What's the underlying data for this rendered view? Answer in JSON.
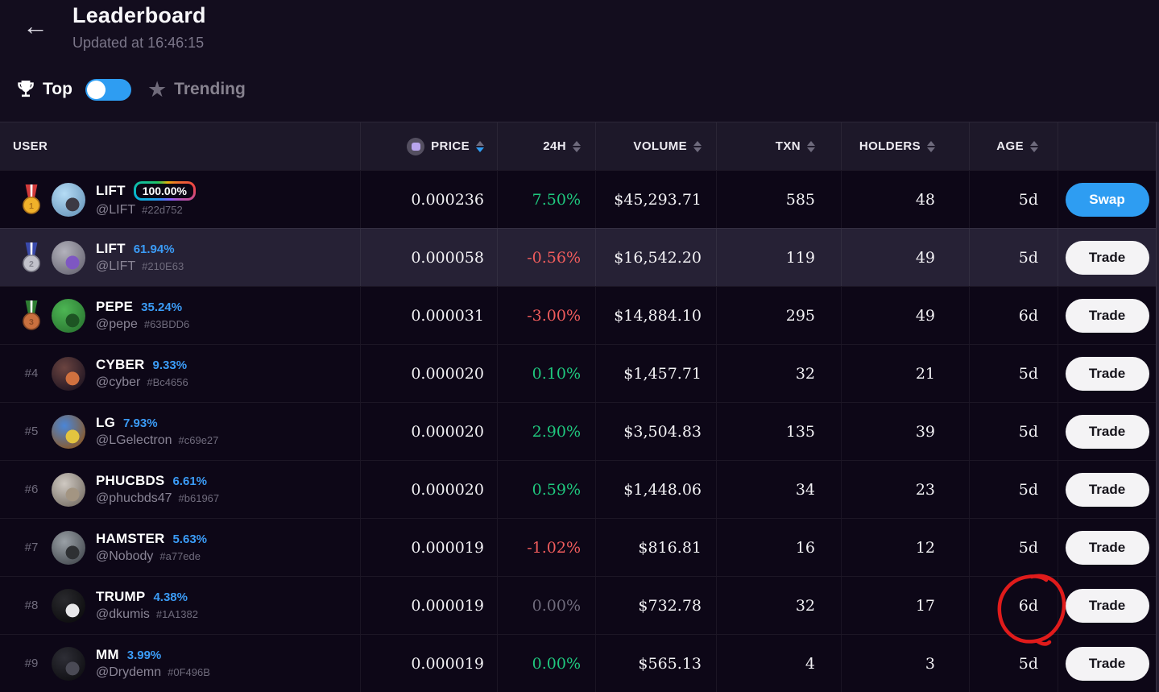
{
  "page": {
    "title": "Leaderboard",
    "updated": "Updated at 16:46:15"
  },
  "back_button": {
    "glyph": "←"
  },
  "filter_toggle": {
    "left": {
      "label": "Top",
      "icon": "trophy-icon",
      "active": true
    },
    "right": {
      "label": "Trending",
      "icon": "star-icon",
      "active": false
    },
    "star_glyph": "★",
    "switch_color": "#2e9df2",
    "knob_position": "left"
  },
  "table": {
    "columns": [
      {
        "key": "user",
        "label": "USER",
        "sortable": false,
        "align": "left"
      },
      {
        "key": "price",
        "label": "PRICE",
        "sortable": true,
        "align": "right",
        "icon": "coin-icon",
        "sort": "desc"
      },
      {
        "key": "h24",
        "label": "24H",
        "sortable": true,
        "align": "right"
      },
      {
        "key": "volume",
        "label": "VOLUME",
        "sortable": true,
        "align": "right"
      },
      {
        "key": "txn",
        "label": "TXN",
        "sortable": true,
        "align": "right"
      },
      {
        "key": "holders",
        "label": "HOLDERS",
        "sortable": true,
        "align": "right"
      },
      {
        "key": "age",
        "label": "AGE",
        "sortable": true,
        "align": "right"
      },
      {
        "key": "action",
        "label": "",
        "sortable": false,
        "align": "center"
      }
    ],
    "rows": [
      {
        "rank": "1",
        "rank_type": "medal-gold",
        "name": "LIFT",
        "pct": "100.00%",
        "badge": true,
        "handle": "@LIFT",
        "hash": "#22d752",
        "price": "0.000236",
        "h24": "7.50%",
        "h24_tone": "green",
        "volume": "$45,293.71",
        "txn": "585",
        "holders": "48",
        "age": "5d",
        "action": "Swap",
        "action_style": "primary",
        "highlight": false,
        "annotated": false,
        "avatar": {
          "base": "#b5dcf5",
          "shade": "#6f9cc0",
          "accent": "#3c3a44"
        }
      },
      {
        "rank": "2",
        "rank_type": "medal-silver",
        "name": "LIFT",
        "pct": "61.94%",
        "badge": false,
        "handle": "@LIFT",
        "hash": "#210E63",
        "price": "0.000058",
        "h24": "-0.56%",
        "h24_tone": "red",
        "volume": "$16,542.20",
        "txn": "119",
        "holders": "49",
        "age": "5d",
        "action": "Trade",
        "action_style": "light",
        "highlight": true,
        "annotated": false,
        "avatar": {
          "base": "#b3b2bc",
          "shade": "#6e6c79",
          "accent": "#7e57c2"
        }
      },
      {
        "rank": "3",
        "rank_type": "medal-bronze",
        "name": "PEPE",
        "pct": "35.24%",
        "badge": false,
        "handle": "@pepe",
        "hash": "#63BDD6",
        "price": "0.000031",
        "h24": "-3.00%",
        "h24_tone": "red",
        "volume": "$14,884.10",
        "txn": "295",
        "holders": "49",
        "age": "6d",
        "action": "Trade",
        "action_style": "light",
        "highlight": false,
        "annotated": false,
        "avatar": {
          "base": "#4db654",
          "shade": "#2c7a33",
          "accent": "#1d5423"
        }
      },
      {
        "rank": "#4",
        "rank_type": "number",
        "name": "CYBER",
        "pct": "9.33%",
        "badge": false,
        "handle": "@cyber",
        "hash": "#Bc4656",
        "price": "0.000020",
        "h24": "0.10%",
        "h24_tone": "green",
        "volume": "$1,457.71",
        "txn": "32",
        "holders": "21",
        "age": "5d",
        "action": "Trade",
        "action_style": "light",
        "highlight": false,
        "annotated": false,
        "avatar": {
          "base": "#6b4440",
          "shade": "#241824",
          "accent": "#d0713f"
        }
      },
      {
        "rank": "#5",
        "rank_type": "number",
        "name": "LG",
        "pct": "7.93%",
        "badge": false,
        "handle": "@LGelectron",
        "hash": "#c69e27",
        "price": "0.000020",
        "h24": "2.90%",
        "h24_tone": "green",
        "volume": "$3,504.83",
        "txn": "135",
        "holders": "39",
        "age": "5d",
        "action": "Trade",
        "action_style": "light",
        "highlight": false,
        "annotated": false,
        "avatar": {
          "base": "#4a86d8",
          "shade": "#8a5a2a",
          "accent": "#e3c43f"
        }
      },
      {
        "rank": "#6",
        "rank_type": "number",
        "name": "PHUCBDS",
        "pct": "6.61%",
        "badge": false,
        "handle": "@phucbds47",
        "hash": "#b61967",
        "price": "0.000020",
        "h24": "0.59%",
        "h24_tone": "green",
        "volume": "$1,448.06",
        "txn": "34",
        "holders": "23",
        "age": "5d",
        "action": "Trade",
        "action_style": "light",
        "highlight": false,
        "annotated": false,
        "avatar": {
          "base": "#cfc9c2",
          "shade": "#7d756c",
          "accent": "#a39582"
        }
      },
      {
        "rank": "#7",
        "rank_type": "number",
        "name": "HAMSTER",
        "pct": "5.63%",
        "badge": false,
        "handle": "@Nobody",
        "hash": "#a77ede",
        "price": "0.000019",
        "h24": "-1.02%",
        "h24_tone": "red",
        "volume": "$816.81",
        "txn": "16",
        "holders": "12",
        "age": "5d",
        "action": "Trade",
        "action_style": "light",
        "highlight": false,
        "annotated": false,
        "avatar": {
          "base": "#9aa0a6",
          "shade": "#4a4f55",
          "accent": "#2e3033"
        }
      },
      {
        "rank": "#8",
        "rank_type": "number",
        "name": "TRUMP",
        "pct": "4.38%",
        "badge": false,
        "handle": "@dkumis",
        "hash": "#1A1382",
        "price": "0.000019",
        "h24": "0.00%",
        "h24_tone": "gray",
        "volume": "$732.78",
        "txn": "32",
        "holders": "17",
        "age": "6d",
        "action": "Trade",
        "action_style": "light",
        "highlight": false,
        "annotated": true,
        "avatar": {
          "base": "#2a2a2e",
          "shade": "#0e0e10",
          "accent": "#e8e8ea"
        }
      },
      {
        "rank": "#9",
        "rank_type": "number",
        "name": "MM",
        "pct": "3.99%",
        "badge": false,
        "handle": "@Drydemn",
        "hash": "#0F496B",
        "price": "0.000019",
        "h24": "0.00%",
        "h24_tone": "green",
        "volume": "$565.13",
        "txn": "4",
        "holders": "3",
        "age": "5d",
        "action": "Trade",
        "action_style": "light",
        "highlight": false,
        "annotated": false,
        "avatar": {
          "base": "#2e2e36",
          "shade": "#101014",
          "accent": "#4a4a55"
        }
      }
    ]
  },
  "annotation": {
    "shape": "hand-drawn-circle",
    "color": "#e01b1b",
    "around": "row #8 AGE value 6d"
  },
  "colors": {
    "page_bg": "#130d1e",
    "row_bg": "#0d0717",
    "row_highlight": "#262135",
    "header_row_bg": "#1d1829",
    "accent_blue": "#2f9df3",
    "positive_green": "#1fc77e",
    "negative_red": "#ef5c5c",
    "neutral_gray": "#6f6b7c",
    "button_light": "#f4f3f5",
    "name_pct_blue": "#3b9cf7"
  }
}
